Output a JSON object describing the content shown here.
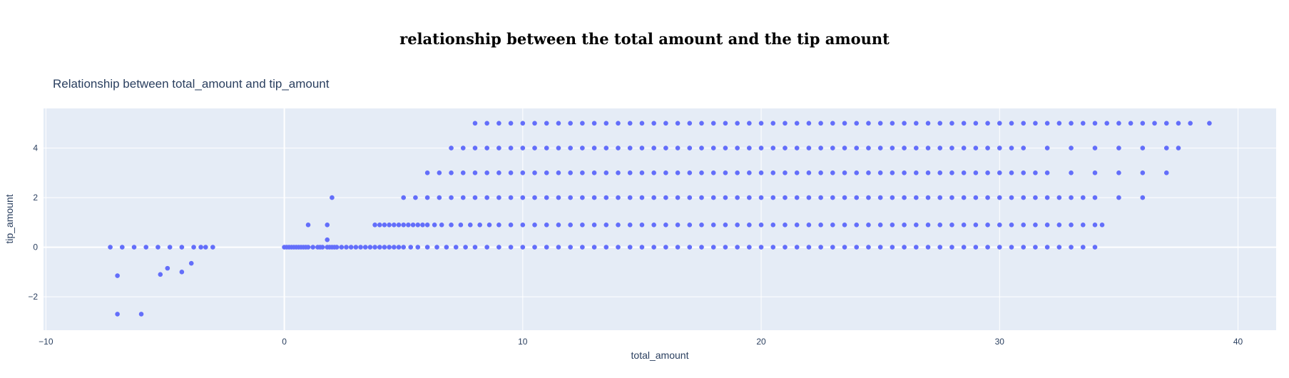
{
  "page": {
    "heading": "relationship between the total amount and the tip amount"
  },
  "chart_data": {
    "type": "scatter",
    "title": "Relationship between total_amount and tip_amount",
    "xlabel": "total_amount",
    "ylabel": "tip_amount",
    "xlim": [
      -10.1,
      41.6
    ],
    "ylim": [
      -3.35,
      5.6
    ],
    "xticks": [
      -10,
      0,
      10,
      20,
      30,
      40
    ],
    "yticks": [
      -2,
      0,
      2,
      4
    ],
    "grid": true,
    "marker_color": "#636efa",
    "plot_bg": "#e5ecf6",
    "series": [
      {
        "x": [
          -7.3,
          -6.8,
          -6.3,
          -5.8,
          -5.3,
          -4.8,
          -4.3,
          -3.8,
          -3.5,
          -3.3,
          -3.0,
          -7.0,
          -5.2,
          -4.9,
          -4.3,
          -3.9,
          -7.0,
          -6.0,
          0.0,
          0.1,
          0.2,
          0.3,
          0.4,
          0.5,
          0.6,
          0.7,
          0.8,
          0.9,
          1.0,
          1.2,
          1.4,
          1.5,
          1.6,
          1.8,
          1.9,
          2.0,
          2.1,
          2.2,
          2.4,
          2.6,
          2.8,
          3.0,
          3.2,
          3.4,
          3.6,
          3.8,
          4.0,
          4.2,
          4.4,
          4.6,
          4.8,
          5.0,
          5.3,
          5.6,
          6.0,
          6.4,
          6.8,
          7.2,
          7.6,
          8.0,
          8.5,
          9.0,
          9.5,
          10.0,
          10.5,
          11.0,
          11.5,
          12.0,
          12.5,
          13.0,
          13.5,
          14.0,
          14.5,
          15.0,
          15.5,
          16.0,
          16.5,
          17.0,
          17.5,
          18.0,
          18.5,
          19.0,
          19.5,
          20.0,
          20.5,
          21.0,
          21.5,
          22.0,
          22.5,
          23.0,
          23.5,
          24.0,
          24.5,
          25.0,
          25.5,
          26.0,
          26.5,
          27.0,
          27.5,
          28.0,
          28.5,
          29.0,
          29.5,
          30.0,
          30.5,
          31.0,
          31.5,
          32.0,
          32.5,
          33.0,
          33.5,
          34.0,
          1.0,
          1.8,
          2.0,
          1.8,
          3.8,
          4.0,
          4.2,
          4.4,
          4.6,
          4.8,
          5.0,
          5.2,
          5.4,
          5.6,
          5.8,
          6.0,
          6.3,
          6.6,
          7.0,
          7.4,
          7.8,
          8.2,
          8.6,
          9.0,
          9.5,
          10.0,
          10.5,
          11.0,
          11.5,
          12.0,
          12.5,
          13.0,
          13.5,
          14.0,
          14.5,
          15.0,
          15.5,
          16.0,
          16.5,
          17.0,
          17.5,
          18.0,
          18.5,
          19.0,
          19.5,
          20.0,
          20.5,
          21.0,
          21.5,
          22.0,
          22.5,
          23.0,
          23.5,
          24.0,
          24.5,
          25.0,
          25.5,
          26.0,
          26.5,
          27.0,
          27.5,
          28.0,
          28.5,
          29.0,
          29.5,
          30.0,
          30.5,
          31.0,
          31.5,
          32.0,
          32.5,
          33.0,
          33.5,
          34.0,
          34.3,
          5.0,
          5.5,
          6.0,
          6.5,
          7.0,
          7.5,
          8.0,
          8.5,
          9.0,
          9.5,
          10.0,
          10.5,
          11.0,
          11.5,
          12.0,
          12.5,
          13.0,
          13.5,
          14.0,
          14.5,
          15.0,
          15.5,
          16.0,
          16.5,
          17.0,
          17.5,
          18.0,
          18.5,
          19.0,
          19.5,
          20.0,
          20.5,
          21.0,
          21.5,
          22.0,
          22.5,
          23.0,
          23.5,
          24.0,
          24.5,
          25.0,
          25.5,
          26.0,
          26.5,
          27.0,
          27.5,
          28.0,
          28.5,
          29.0,
          29.5,
          30.0,
          30.5,
          31.0,
          31.5,
          32.0,
          32.5,
          33.0,
          33.5,
          34.0,
          35.0,
          36.0,
          6.0,
          6.5,
          7.0,
          7.5,
          8.0,
          8.5,
          9.0,
          9.5,
          10.0,
          10.5,
          11.0,
          11.5,
          12.0,
          12.5,
          13.0,
          13.5,
          14.0,
          14.5,
          15.0,
          15.5,
          16.0,
          16.5,
          17.0,
          17.5,
          18.0,
          18.5,
          19.0,
          19.5,
          20.0,
          20.5,
          21.0,
          21.5,
          22.0,
          22.5,
          23.0,
          23.5,
          24.0,
          24.5,
          25.0,
          25.5,
          26.0,
          26.5,
          27.0,
          27.5,
          28.0,
          28.5,
          29.0,
          29.5,
          30.0,
          30.5,
          31.0,
          31.5,
          32.0,
          33.0,
          34.0,
          35.0,
          36.0,
          37.0,
          7.0,
          7.5,
          8.0,
          8.5,
          9.0,
          9.5,
          10.0,
          10.5,
          11.0,
          11.5,
          12.0,
          12.5,
          13.0,
          13.5,
          14.0,
          14.5,
          15.0,
          15.5,
          16.0,
          16.5,
          17.0,
          17.5,
          18.0,
          18.5,
          19.0,
          19.5,
          20.0,
          20.5,
          21.0,
          21.5,
          22.0,
          22.5,
          23.0,
          23.5,
          24.0,
          24.5,
          25.0,
          25.5,
          26.0,
          26.5,
          27.0,
          27.5,
          28.0,
          28.5,
          29.0,
          29.5,
          30.0,
          30.5,
          31.0,
          32.0,
          33.0,
          34.0,
          35.0,
          36.0,
          37.0,
          37.5,
          8.0,
          8.5,
          9.0,
          9.5,
          10.0,
          10.5,
          11.0,
          11.5,
          12.0,
          12.5,
          13.0,
          13.5,
          14.0,
          14.5,
          15.0,
          15.5,
          16.0,
          16.5,
          17.0,
          17.5,
          18.0,
          18.5,
          19.0,
          19.5,
          20.0,
          20.5,
          21.0,
          21.5,
          22.0,
          22.5,
          23.0,
          23.5,
          24.0,
          24.5,
          25.0,
          25.5,
          26.0,
          26.5,
          27.0,
          27.5,
          28.0,
          28.5,
          29.0,
          29.5,
          30.0,
          30.5,
          31.0,
          31.5,
          32.0,
          32.5,
          33.0,
          33.5,
          34.0,
          34.5,
          35.0,
          35.5,
          36.0,
          36.5,
          37.0,
          37.5,
          38.0,
          38.8
        ],
        "y": [
          0.0,
          0.0,
          0.0,
          0.0,
          0.0,
          0.0,
          0.0,
          0.0,
          0.0,
          0.0,
          0.0,
          -1.15,
          -1.1,
          -0.85,
          -1.0,
          -0.65,
          -2.7,
          -2.7,
          0.0,
          0.0,
          0.0,
          0.0,
          0.0,
          0.0,
          0.0,
          0.0,
          0.0,
          0.0,
          0.0,
          0.0,
          0.0,
          0.0,
          0.0,
          0.0,
          0.0,
          0.0,
          0.0,
          0.0,
          0.0,
          0.0,
          0.0,
          0.0,
          0.0,
          0.0,
          0.0,
          0.0,
          0.0,
          0.0,
          0.0,
          0.0,
          0.0,
          0.0,
          0.0,
          0.0,
          0.0,
          0.0,
          0.0,
          0.0,
          0.0,
          0.0,
          0.0,
          0.0,
          0.0,
          0.0,
          0.0,
          0.0,
          0.0,
          0.0,
          0.0,
          0.0,
          0.0,
          0.0,
          0.0,
          0.0,
          0.0,
          0.0,
          0.0,
          0.0,
          0.0,
          0.0,
          0.0,
          0.0,
          0.0,
          0.0,
          0.0,
          0.0,
          0.0,
          0.0,
          0.0,
          0.0,
          0.0,
          0.0,
          0.0,
          0.0,
          0.0,
          0.0,
          0.0,
          0.0,
          0.0,
          0.0,
          0.0,
          0.0,
          0.0,
          0.0,
          0.0,
          0.0,
          0.0,
          0.0,
          0.0,
          0.0,
          0.0,
          0.0,
          0.9,
          0.9,
          2.0,
          0.3,
          0.9,
          0.9,
          0.9,
          0.9,
          0.9,
          0.9,
          0.9,
          0.9,
          0.9,
          0.9,
          0.9,
          0.9,
          0.9,
          0.9,
          0.9,
          0.9,
          0.9,
          0.9,
          0.9,
          0.9,
          0.9,
          0.9,
          0.9,
          0.9,
          0.9,
          0.9,
          0.9,
          0.9,
          0.9,
          0.9,
          0.9,
          0.9,
          0.9,
          0.9,
          0.9,
          0.9,
          0.9,
          0.9,
          0.9,
          0.9,
          0.9,
          0.9,
          0.9,
          0.9,
          0.9,
          0.9,
          0.9,
          0.9,
          0.9,
          0.9,
          0.9,
          0.9,
          0.9,
          0.9,
          0.9,
          0.9,
          0.9,
          0.9,
          0.9,
          0.9,
          0.9,
          0.9,
          0.9,
          0.9,
          0.9,
          0.9,
          0.9,
          0.9,
          0.9,
          0.9,
          0.9,
          2.0,
          2.0,
          2.0,
          2.0,
          2.0,
          2.0,
          2.0,
          2.0,
          2.0,
          2.0,
          2.0,
          2.0,
          2.0,
          2.0,
          2.0,
          2.0,
          2.0,
          2.0,
          2.0,
          2.0,
          2.0,
          2.0,
          2.0,
          2.0,
          2.0,
          2.0,
          2.0,
          2.0,
          2.0,
          2.0,
          2.0,
          2.0,
          2.0,
          2.0,
          2.0,
          2.0,
          2.0,
          2.0,
          2.0,
          2.0,
          2.0,
          2.0,
          2.0,
          2.0,
          2.0,
          2.0,
          2.0,
          2.0,
          2.0,
          2.0,
          2.0,
          2.0,
          2.0,
          2.0,
          2.0,
          2.0,
          2.0,
          2.0,
          2.0,
          2.0,
          2.0,
          3.0,
          3.0,
          3.0,
          3.0,
          3.0,
          3.0,
          3.0,
          3.0,
          3.0,
          3.0,
          3.0,
          3.0,
          3.0,
          3.0,
          3.0,
          3.0,
          3.0,
          3.0,
          3.0,
          3.0,
          3.0,
          3.0,
          3.0,
          3.0,
          3.0,
          3.0,
          3.0,
          3.0,
          3.0,
          3.0,
          3.0,
          3.0,
          3.0,
          3.0,
          3.0,
          3.0,
          3.0,
          3.0,
          3.0,
          3.0,
          3.0,
          3.0,
          3.0,
          3.0,
          3.0,
          3.0,
          3.0,
          3.0,
          3.0,
          3.0,
          3.0,
          3.0,
          3.0,
          3.0,
          3.0,
          3.0,
          3.0,
          3.0,
          4.0,
          4.0,
          4.0,
          4.0,
          4.0,
          4.0,
          4.0,
          4.0,
          4.0,
          4.0,
          4.0,
          4.0,
          4.0,
          4.0,
          4.0,
          4.0,
          4.0,
          4.0,
          4.0,
          4.0,
          4.0,
          4.0,
          4.0,
          4.0,
          4.0,
          4.0,
          4.0,
          4.0,
          4.0,
          4.0,
          4.0,
          4.0,
          4.0,
          4.0,
          4.0,
          4.0,
          4.0,
          4.0,
          4.0,
          4.0,
          4.0,
          4.0,
          4.0,
          4.0,
          4.0,
          4.0,
          4.0,
          4.0,
          4.0,
          4.0,
          4.0,
          4.0,
          4.0,
          4.0,
          4.0,
          4.0,
          5.0,
          5.0,
          5.0,
          5.0,
          5.0,
          5.0,
          5.0,
          5.0,
          5.0,
          5.0,
          5.0,
          5.0,
          5.0,
          5.0,
          5.0,
          5.0,
          5.0,
          5.0,
          5.0,
          5.0,
          5.0,
          5.0,
          5.0,
          5.0,
          5.0,
          5.0,
          5.0,
          5.0,
          5.0,
          5.0,
          5.0,
          5.0,
          5.0,
          5.0,
          5.0,
          5.0,
          5.0,
          5.0,
          5.0,
          5.0,
          5.0,
          5.0,
          5.0,
          5.0,
          5.0,
          5.0,
          5.0,
          5.0,
          5.0,
          5.0,
          5.0,
          5.0,
          5.0,
          5.0,
          5.0,
          5.0,
          5.0,
          5.0,
          5.0,
          5.0,
          5.0,
          5.0
        ]
      }
    ]
  }
}
